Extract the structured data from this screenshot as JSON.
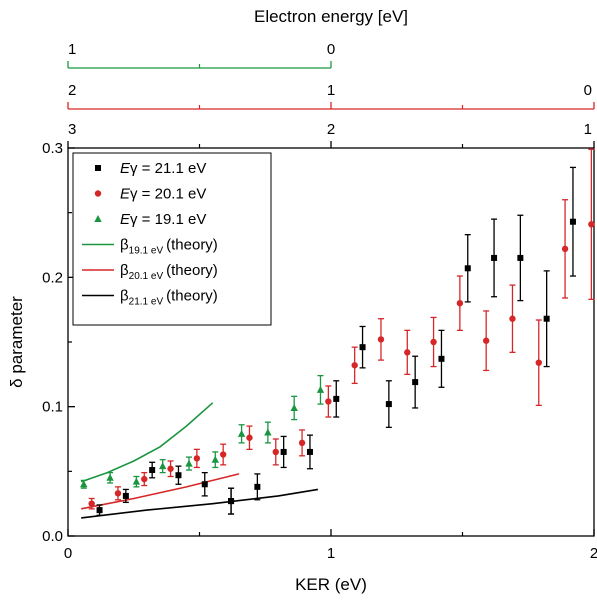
{
  "top_axis": {
    "title": "Electron energy [eV]",
    "green_axis": {
      "color": "#1a9641",
      "ticks": [
        {
          "label": "1",
          "ker": 0.0
        },
        {
          "label": "0",
          "ker": 1.0
        }
      ],
      "minor_ker": [
        0.5
      ]
    },
    "red_axis": {
      "color": "#d62728",
      "ticks": [
        {
          "label": "2",
          "ker": 0.0
        },
        {
          "label": "1",
          "ker": 1.0
        },
        {
          "label": "0",
          "ker": 2.0
        }
      ],
      "minor_ker": [
        0.5,
        1.5
      ]
    },
    "black_axis": {
      "color": "#000000",
      "ticks": [
        {
          "label": "3",
          "ker": 0.0
        },
        {
          "label": "2",
          "ker": 1.0
        },
        {
          "label": "1",
          "ker": 2.0
        }
      ],
      "minor_ker": [
        0.5,
        1.5
      ]
    }
  },
  "chart_data": {
    "type": "scatter",
    "xlabel": "KER (eV)",
    "ylabel": "δ parameter",
    "xlim": [
      0,
      2
    ],
    "ylim": [
      0,
      0.3
    ],
    "x_ticks": [
      {
        "value": 0,
        "label": "0"
      },
      {
        "value": 1,
        "label": "1"
      },
      {
        "value": 2,
        "label": "2"
      }
    ],
    "y_ticks": [
      {
        "value": 0,
        "label": "0.0"
      },
      {
        "value": 0.1,
        "label": "0.1"
      },
      {
        "value": 0.2,
        "label": "0.2"
      },
      {
        "value": 0.3,
        "label": "0.3"
      }
    ],
    "grid": false,
    "legend_position": "top-left",
    "series": [
      {
        "name_prefix": "E",
        "name": "γ = 21.1 eV",
        "marker": "square",
        "color": "#000000",
        "points": [
          {
            "x": 0.12,
            "y": 0.02,
            "err": 0.004
          },
          {
            "x": 0.22,
            "y": 0.031,
            "err": 0.005
          },
          {
            "x": 0.32,
            "y": 0.051,
            "err": 0.006
          },
          {
            "x": 0.42,
            "y": 0.047,
            "err": 0.007
          },
          {
            "x": 0.52,
            "y": 0.04,
            "err": 0.009
          },
          {
            "x": 0.62,
            "y": 0.027,
            "err": 0.01
          },
          {
            "x": 0.62,
            "y": 0.027,
            "err": 0.01
          },
          {
            "x": 0.72,
            "y": 0.038,
            "err": 0.01
          },
          {
            "x": 0.82,
            "y": 0.065,
            "err": 0.012
          },
          {
            "x": 0.92,
            "y": 0.065,
            "err": 0.013
          },
          {
            "x": 1.02,
            "y": 0.106,
            "err": 0.014
          },
          {
            "x": 1.12,
            "y": 0.146,
            "err": 0.016
          },
          {
            "x": 1.22,
            "y": 0.102,
            "err": 0.018
          },
          {
            "x": 1.32,
            "y": 0.119,
            "err": 0.02
          },
          {
            "x": 1.42,
            "y": 0.137,
            "err": 0.022
          },
          {
            "x": 1.52,
            "y": 0.207,
            "err": 0.026
          },
          {
            "x": 1.62,
            "y": 0.215,
            "err": 0.03
          },
          {
            "x": 1.72,
            "y": 0.215,
            "err": 0.033
          },
          {
            "x": 1.82,
            "y": 0.168,
            "err": 0.037
          },
          {
            "x": 1.92,
            "y": 0.243,
            "err": 0.042
          }
        ]
      },
      {
        "name_prefix": "E",
        "name": "γ = 20.1 eV",
        "marker": "circle",
        "color": "#d62728",
        "points": [
          {
            "x": 0.09,
            "y": 0.025,
            "err": 0.004
          },
          {
            "x": 0.19,
            "y": 0.033,
            "err": 0.005
          },
          {
            "x": 0.29,
            "y": 0.044,
            "err": 0.005
          },
          {
            "x": 0.39,
            "y": 0.052,
            "err": 0.006
          },
          {
            "x": 0.49,
            "y": 0.06,
            "err": 0.007
          },
          {
            "x": 0.59,
            "y": 0.063,
            "err": 0.008
          },
          {
            "x": 0.69,
            "y": 0.076,
            "err": 0.009
          },
          {
            "x": 0.79,
            "y": 0.065,
            "err": 0.01
          },
          {
            "x": 0.89,
            "y": 0.072,
            "err": 0.01
          },
          {
            "x": 0.99,
            "y": 0.104,
            "err": 0.012
          },
          {
            "x": 1.09,
            "y": 0.132,
            "err": 0.014
          },
          {
            "x": 1.19,
            "y": 0.152,
            "err": 0.016
          },
          {
            "x": 1.29,
            "y": 0.142,
            "err": 0.017
          },
          {
            "x": 1.39,
            "y": 0.15,
            "err": 0.019
          },
          {
            "x": 1.49,
            "y": 0.18,
            "err": 0.021
          },
          {
            "x": 1.59,
            "y": 0.151,
            "err": 0.023
          },
          {
            "x": 1.69,
            "y": 0.168,
            "err": 0.026
          },
          {
            "x": 1.79,
            "y": 0.134,
            "err": 0.033
          },
          {
            "x": 1.89,
            "y": 0.222,
            "err": 0.038
          },
          {
            "x": 1.99,
            "y": 0.241,
            "err": 0.058
          }
        ]
      },
      {
        "name_prefix": "E",
        "name": "γ = 19.1 eV",
        "marker": "triangle",
        "color": "#1a9641",
        "points": [
          {
            "x": 0.06,
            "y": 0.04,
            "err": 0.003
          },
          {
            "x": 0.16,
            "y": 0.045,
            "err": 0.004
          },
          {
            "x": 0.26,
            "y": 0.042,
            "err": 0.004
          },
          {
            "x": 0.36,
            "y": 0.054,
            "err": 0.005
          },
          {
            "x": 0.46,
            "y": 0.056,
            "err": 0.005
          },
          {
            "x": 0.56,
            "y": 0.059,
            "err": 0.006
          },
          {
            "x": 0.66,
            "y": 0.079,
            "err": 0.007
          },
          {
            "x": 0.76,
            "y": 0.08,
            "err": 0.008
          },
          {
            "x": 0.86,
            "y": 0.099,
            "err": 0.009
          },
          {
            "x": 0.96,
            "y": 0.113,
            "err": 0.011
          }
        ]
      }
    ],
    "theory": [
      {
        "name_base": "β",
        "name_sub": "19.1 eV",
        "name_suffix": "(theory)",
        "color": "#1a9641",
        "x": [
          0.05,
          0.15,
          0.25,
          0.35,
          0.45,
          0.55
        ],
        "y": [
          0.042,
          0.049,
          0.058,
          0.069,
          0.085,
          0.103
        ]
      },
      {
        "name_base": "β",
        "name_sub": "20.1 eV",
        "name_suffix": "(theory)",
        "color": "#d62728",
        "x": [
          0.05,
          0.25,
          0.45,
          0.65
        ],
        "y": [
          0.021,
          0.029,
          0.038,
          0.048
        ]
      },
      {
        "name_base": "β",
        "name_sub": "21.1 eV",
        "name_suffix": "(theory)",
        "color": "#000000",
        "x": [
          0.05,
          0.3,
          0.55,
          0.8,
          0.95
        ],
        "y": [
          0.014,
          0.02,
          0.025,
          0.031,
          0.036
        ]
      }
    ]
  }
}
